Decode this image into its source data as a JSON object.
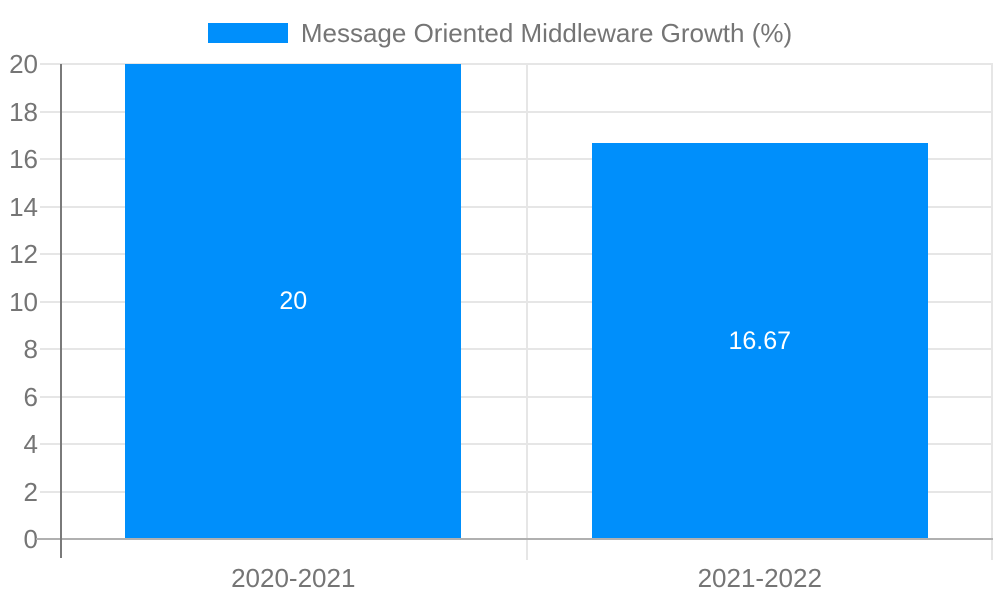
{
  "chart_data": {
    "type": "bar",
    "title": "Message Oriented Middleware Growth (%)",
    "legend": {
      "label": "Message Oriented Middleware Growth (%)",
      "position": "top-center",
      "marker": "rectangle"
    },
    "categories": [
      "2020-2021",
      "2021-2022"
    ],
    "values": [
      20,
      16.67
    ],
    "value_labels": [
      "20",
      "16.67"
    ],
    "xlabel": "",
    "ylabel": "",
    "ylim": [
      0,
      20
    ],
    "yticks": [
      0,
      2,
      4,
      6,
      8,
      10,
      12,
      14,
      16,
      18,
      20
    ],
    "grid": true,
    "colors": {
      "bar": "#008ffb",
      "axis_text": "#757575",
      "value_label_text": "#ffffff",
      "gridline": "#e6e6e6",
      "baseline": "#b0b0b0",
      "axis_line": "#7a7a7a",
      "background": "#ffffff"
    }
  }
}
